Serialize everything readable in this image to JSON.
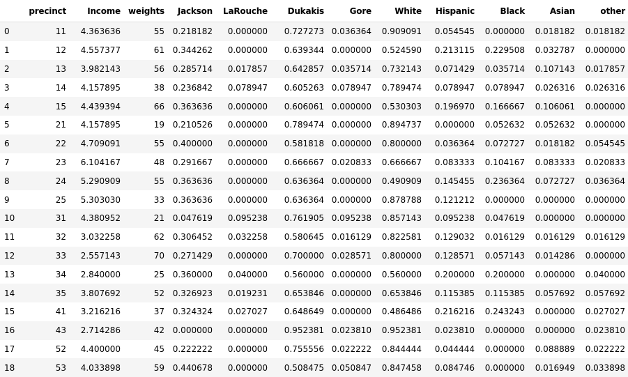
{
  "table": {
    "columns": [
      "",
      "precinct",
      "Income",
      "weights",
      "Jackson",
      "LaRouche",
      "Dukakis",
      "Gore",
      "White",
      "Hispanic",
      "Black",
      "Asian",
      "other"
    ],
    "rows": [
      [
        "0",
        "11",
        "4.363636",
        "55",
        "0.218182",
        "0.000000",
        "0.727273",
        "0.036364",
        "0.909091",
        "0.054545",
        "0.000000",
        "0.018182",
        "0.018182"
      ],
      [
        "1",
        "12",
        "4.557377",
        "61",
        "0.344262",
        "0.000000",
        "0.639344",
        "0.000000",
        "0.524590",
        "0.213115",
        "0.229508",
        "0.032787",
        "0.000000"
      ],
      [
        "2",
        "13",
        "3.982143",
        "56",
        "0.285714",
        "0.017857",
        "0.642857",
        "0.035714",
        "0.732143",
        "0.071429",
        "0.035714",
        "0.107143",
        "0.017857"
      ],
      [
        "3",
        "14",
        "4.157895",
        "38",
        "0.236842",
        "0.078947",
        "0.605263",
        "0.078947",
        "0.789474",
        "0.078947",
        "0.078947",
        "0.026316",
        "0.026316"
      ],
      [
        "4",
        "15",
        "4.439394",
        "66",
        "0.363636",
        "0.000000",
        "0.606061",
        "0.000000",
        "0.530303",
        "0.196970",
        "0.166667",
        "0.106061",
        "0.000000"
      ],
      [
        "5",
        "21",
        "4.157895",
        "19",
        "0.210526",
        "0.000000",
        "0.789474",
        "0.000000",
        "0.894737",
        "0.000000",
        "0.052632",
        "0.052632",
        "0.000000"
      ],
      [
        "6",
        "22",
        "4.709091",
        "55",
        "0.400000",
        "0.000000",
        "0.581818",
        "0.000000",
        "0.800000",
        "0.036364",
        "0.072727",
        "0.018182",
        "0.054545"
      ],
      [
        "7",
        "23",
        "6.104167",
        "48",
        "0.291667",
        "0.000000",
        "0.666667",
        "0.020833",
        "0.666667",
        "0.083333",
        "0.104167",
        "0.083333",
        "0.020833"
      ],
      [
        "8",
        "24",
        "5.290909",
        "55",
        "0.363636",
        "0.000000",
        "0.636364",
        "0.000000",
        "0.490909",
        "0.145455",
        "0.236364",
        "0.072727",
        "0.036364"
      ],
      [
        "9",
        "25",
        "5.303030",
        "33",
        "0.363636",
        "0.000000",
        "0.636364",
        "0.000000",
        "0.878788",
        "0.121212",
        "0.000000",
        "0.000000",
        "0.000000"
      ],
      [
        "10",
        "31",
        "4.380952",
        "21",
        "0.047619",
        "0.095238",
        "0.761905",
        "0.095238",
        "0.857143",
        "0.095238",
        "0.047619",
        "0.000000",
        "0.000000"
      ],
      [
        "11",
        "32",
        "3.032258",
        "62",
        "0.306452",
        "0.032258",
        "0.580645",
        "0.016129",
        "0.822581",
        "0.129032",
        "0.016129",
        "0.016129",
        "0.016129"
      ],
      [
        "12",
        "33",
        "2.557143",
        "70",
        "0.271429",
        "0.000000",
        "0.700000",
        "0.028571",
        "0.800000",
        "0.128571",
        "0.057143",
        "0.014286",
        "0.000000"
      ],
      [
        "13",
        "34",
        "2.840000",
        "25",
        "0.360000",
        "0.040000",
        "0.560000",
        "0.000000",
        "0.560000",
        "0.200000",
        "0.200000",
        "0.000000",
        "0.040000"
      ],
      [
        "14",
        "35",
        "3.807692",
        "52",
        "0.326923",
        "0.019231",
        "0.653846",
        "0.000000",
        "0.653846",
        "0.115385",
        "0.115385",
        "0.057692",
        "0.057692"
      ],
      [
        "15",
        "41",
        "3.216216",
        "37",
        "0.324324",
        "0.027027",
        "0.648649",
        "0.000000",
        "0.486486",
        "0.216216",
        "0.243243",
        "0.000000",
        "0.027027"
      ],
      [
        "16",
        "43",
        "2.714286",
        "42",
        "0.000000",
        "0.000000",
        "0.952381",
        "0.023810",
        "0.952381",
        "0.023810",
        "0.000000",
        "0.000000",
        "0.023810"
      ],
      [
        "17",
        "52",
        "4.400000",
        "45",
        "0.222222",
        "0.000000",
        "0.755556",
        "0.022222",
        "0.844444",
        "0.044444",
        "0.000000",
        "0.088889",
        "0.022222"
      ],
      [
        "18",
        "53",
        "4.033898",
        "59",
        "0.440678",
        "0.000000",
        "0.508475",
        "0.050847",
        "0.847458",
        "0.084746",
        "0.000000",
        "0.016949",
        "0.033898"
      ]
    ]
  }
}
